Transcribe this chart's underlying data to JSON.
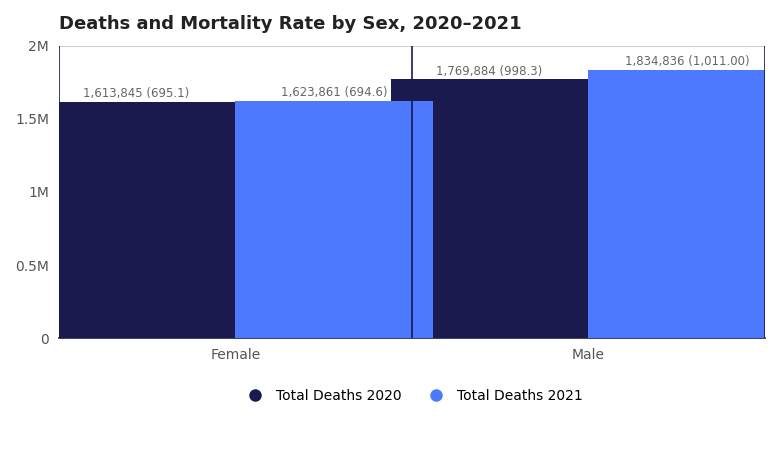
{
  "title": "Deaths and Mortality Rate by Sex, 2020–2021",
  "categories": [
    "Female",
    "Male"
  ],
  "series": [
    {
      "label": "Total Deaths 2020",
      "color": "#1a1a4e",
      "values": [
        1613845,
        1769884
      ],
      "annotations": [
        "1,613,845 (695.1)",
        "1,769,884 (998.3)"
      ]
    },
    {
      "label": "Total Deaths 2021",
      "color": "#4d79ff",
      "values": [
        1623861,
        1834836
      ],
      "annotations": [
        "1,623,861 (694.6)",
        "1,834,836 (1,011.00)"
      ]
    }
  ],
  "ylim": [
    0,
    2000000
  ],
  "yticks": [
    0,
    500000,
    1000000,
    1500000,
    2000000
  ],
  "ytick_labels": [
    "0",
    "0.5M",
    "1M",
    "1.5M",
    "2M"
  ],
  "background_color": "#ffffff",
  "grid_color": "#d0d0d0",
  "bar_width": 0.28,
  "title_fontsize": 13,
  "tick_fontsize": 10,
  "annotation_fontsize": 8.5,
  "legend_fontsize": 10
}
